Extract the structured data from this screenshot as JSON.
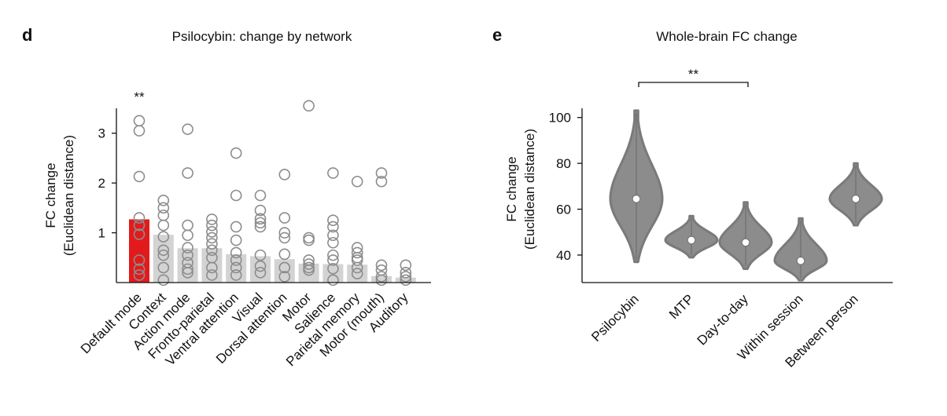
{
  "chart_data": [
    {
      "panel": "d",
      "type": "bar",
      "title": "Psilocybin: change by network",
      "xlabel": "",
      "ylabel": [
        "FC change",
        "(Euclidean distance)"
      ],
      "ylim": [
        0,
        3.5
      ],
      "yticks": [
        1,
        2,
        3
      ],
      "grid": false,
      "significance": "**",
      "highlight_color": "#e31a1c",
      "bar_color": "#d3d3d3",
      "point_color": "#8c8c8c",
      "categories": [
        "Default mode",
        "Context",
        "Action mode",
        "Fronto-parietal",
        "Ventral attention",
        "Visual",
        "Dorsal attention",
        "Motor",
        "Salience",
        "Parietal memory",
        "Motor (mouth)",
        "Auditory"
      ],
      "values": [
        1.27,
        0.96,
        0.69,
        0.69,
        0.57,
        0.53,
        0.47,
        0.38,
        0.37,
        0.36,
        0.13,
        0.1
      ],
      "points": [
        [
          3.25,
          3.05,
          2.13,
          1.3,
          1.15,
          0.97,
          0.45,
          0.27,
          0.15
        ],
        [
          1.65,
          1.5,
          1.35,
          1.15,
          0.92,
          0.65,
          0.55,
          0.3,
          0.05
        ],
        [
          3.08,
          2.2,
          1.15,
          0.95,
          0.7,
          0.55,
          0.4,
          0.27,
          0.2
        ],
        [
          1.27,
          1.15,
          1.02,
          0.9,
          0.78,
          0.65,
          0.5,
          0.3,
          0.15
        ],
        [
          2.6,
          1.75,
          1.12,
          0.85,
          0.6,
          0.45,
          0.3,
          0.15
        ],
        [
          1.75,
          1.45,
          1.28,
          1.2,
          1.12,
          0.55,
          0.33,
          0.2
        ],
        [
          2.17,
          1.3,
          1.0,
          0.9,
          0.57,
          0.3,
          0.12
        ],
        [
          3.55,
          0.9,
          0.85,
          0.45,
          0.37,
          0.3,
          0.25
        ],
        [
          2.2,
          1.25,
          1.12,
          0.95,
          0.8,
          0.55,
          0.45,
          0.28,
          0.05
        ],
        [
          2.03,
          0.7,
          0.6,
          0.5,
          0.45,
          0.3,
          0.18
        ],
        [
          2.2,
          2.03,
          0.35,
          0.25,
          0.12,
          0.05
        ],
        [
          0.35,
          0.2,
          0.12,
          0.05
        ]
      ]
    },
    {
      "panel": "e",
      "type": "violin",
      "title": "Whole-brain FC change",
      "xlabel": "",
      "ylabel": [
        "FC change",
        "(Euclidean distance)"
      ],
      "ylim": [
        28,
        104
      ],
      "yticks": [
        40,
        60,
        80,
        100
      ],
      "grid": false,
      "significance": {
        "label": "**",
        "from": "Psilocybin",
        "to": "Day-to-day"
      },
      "violin_color": "#8c8c8c",
      "categories": [
        "Psilocybin",
        "MTP",
        "Day-to-day",
        "Within session",
        "Between person"
      ],
      "series": [
        {
          "name": "Psilocybin",
          "median": 64.5,
          "min": 37,
          "max": 103
        },
        {
          "name": "MTP",
          "median": 46.5,
          "min": 39,
          "max": 57
        },
        {
          "name": "Day-to-day",
          "median": 45.5,
          "min": 34,
          "max": 63
        },
        {
          "name": "Within session",
          "median": 37.5,
          "min": 29,
          "max": 56
        },
        {
          "name": "Between person",
          "median": 64.5,
          "min": 53,
          "max": 80
        }
      ]
    }
  ]
}
